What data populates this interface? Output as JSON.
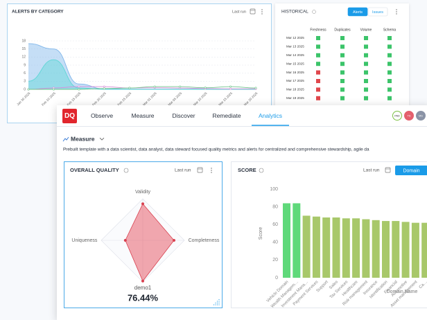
{
  "alerts_panel": {
    "title": "ALERTS BY CATEGORY",
    "last_run": "Last run",
    "chart_data": {
      "type": "area",
      "categories": [
        "Jan 30 2025",
        "Feb 10 2025",
        "Feb 15 2025",
        "Feb 20 2025",
        "Feb 25 2025",
        "Mar 01 2025",
        "Mar 05 2025",
        "Mar 10 2025",
        "Mar 15 2025",
        "Mar 20 2025"
      ],
      "series": [
        {
          "color": "#7fb6ea",
          "fill": true,
          "values": [
            17,
            15,
            2,
            0.2,
            0.1,
            0.1,
            0.1,
            0.1,
            0.1,
            0.1
          ]
        },
        {
          "color": "#5fd6d6",
          "fill": true,
          "values": [
            3,
            11,
            0.5,
            0,
            0,
            0,
            0,
            0,
            0,
            0
          ]
        },
        {
          "color": "#d98ad9",
          "fill": false,
          "values": [
            0,
            0.5,
            1,
            1,
            0.5,
            0.6,
            0.5,
            0.3,
            0.2,
            0.2
          ]
        },
        {
          "color": "#6cc48a",
          "fill": false,
          "values": [
            0,
            0,
            0,
            0.3,
            0.5,
            1,
            1,
            0.6,
            1,
            0.5
          ]
        }
      ],
      "ylim": [
        0,
        18
      ],
      "yticks": [
        0,
        3,
        6,
        9,
        12,
        15,
        18
      ],
      "grid": true
    }
  },
  "historical_panel": {
    "title": "HISTORICAL",
    "tabs": [
      "Alerts",
      "Issues"
    ],
    "active_tab": 0,
    "columns": [
      "Freshness",
      "Duplicates",
      "Volume",
      "Schema"
    ],
    "rows": [
      {
        "date": "Mar 12 2025",
        "cells": [
          "#3cc46a",
          "#3cc46a",
          "#3cc46a",
          "#3cc46a"
        ]
      },
      {
        "date": "Mar 13 2025",
        "cells": [
          "#3cc46a",
          "#3cc46a",
          "#3cc46a",
          "#3cc46a"
        ]
      },
      {
        "date": "Mar 14 2025",
        "cells": [
          "#3cc46a",
          "#3cc46a",
          "#3cc46a",
          "#3cc46a"
        ]
      },
      {
        "date": "Mar 15 2025",
        "cells": [
          "#3cc46a",
          "#3cc46a",
          "#3cc46a",
          "#3cc46a"
        ]
      },
      {
        "date": "Mar 16 2025",
        "cells": [
          "#e0474c",
          "#3cc46a",
          "#3cc46a",
          "#3cc46a"
        ]
      },
      {
        "date": "Mar 17 2025",
        "cells": [
          "#e0474c",
          "#3cc46a",
          "#3cc46a",
          "#3cc46a"
        ]
      },
      {
        "date": "Mar 18 2025",
        "cells": [
          "#e0474c",
          "#3cc46a",
          "#3cc46a",
          "#3cc46a"
        ]
      },
      {
        "date": "Mar 19 2025",
        "cells": [
          "#e0474c",
          "#3cc46a",
          "#3cc46a",
          "#3cc46a"
        ]
      }
    ]
  },
  "nav": {
    "logo": "DQ",
    "tabs": [
      "Observe",
      "Measure",
      "Discover",
      "Remediate",
      "Analytics"
    ],
    "active_tab": 4,
    "avatars": [
      {
        "text": "PAD",
        "color": "#ffffff",
        "ring": "#7bc043"
      },
      {
        "text": "TS",
        "color": "#e4606d",
        "ring": "#e4606d"
      },
      {
        "text": "MS",
        "color": "#8a93a6",
        "ring": "#8a93a6"
      }
    ]
  },
  "section": {
    "title": "Measure",
    "description": "Prebuilt template with a data scientist, data analyst, data steward focused quality metrics and alerts for centralized and comprehensive stewardship, agile da"
  },
  "quality_card": {
    "title": "OVERALL QUALITY",
    "last_run": "Last run",
    "chart_data": {
      "type": "radar",
      "name": "demo1",
      "categories": [
        "Validity",
        "Completeness",
        null,
        "Uniqueness"
      ],
      "values": [
        88,
        75,
        98,
        42
      ],
      "color": "#e8616e",
      "rlim": [
        0,
        100
      ],
      "rticks": [
        20,
        40,
        60,
        80,
        100
      ]
    },
    "overall_score": "76.44%"
  },
  "score_card": {
    "title": "SCORE",
    "last_run": "Last run",
    "button": "Domain",
    "chart_data": {
      "type": "bar",
      "y_label": "Score",
      "x_label": "Domain Name",
      "categories": [
        "Vehicle Domain",
        "Wealth Managem…",
        "Investment Mana…",
        "Payment Services",
        "Support",
        "Sales",
        "Tax Services",
        "Healthcare",
        "Risk management",
        "Insurance",
        "Identification",
        "Financial",
        "Automotive",
        "Asset management",
        "Ca…"
      ],
      "values": [
        84,
        84,
        70,
        69,
        68,
        68,
        67,
        67,
        66,
        65,
        64,
        64,
        63,
        62,
        62
      ],
      "colors": [
        "#5fd97a",
        "#5fd97a",
        "#a8c86a",
        "#a8c86a",
        "#a8c86a",
        "#a8c86a",
        "#a8c86a",
        "#a8c86a",
        "#a8c86a",
        "#a8c86a",
        "#a8c86a",
        "#a8c86a",
        "#a8c86a",
        "#a8c86a",
        "#a8c86a"
      ],
      "ylim": [
        0,
        100
      ],
      "yticks": [
        0,
        20,
        40,
        60,
        80,
        100
      ],
      "grid": false
    }
  }
}
